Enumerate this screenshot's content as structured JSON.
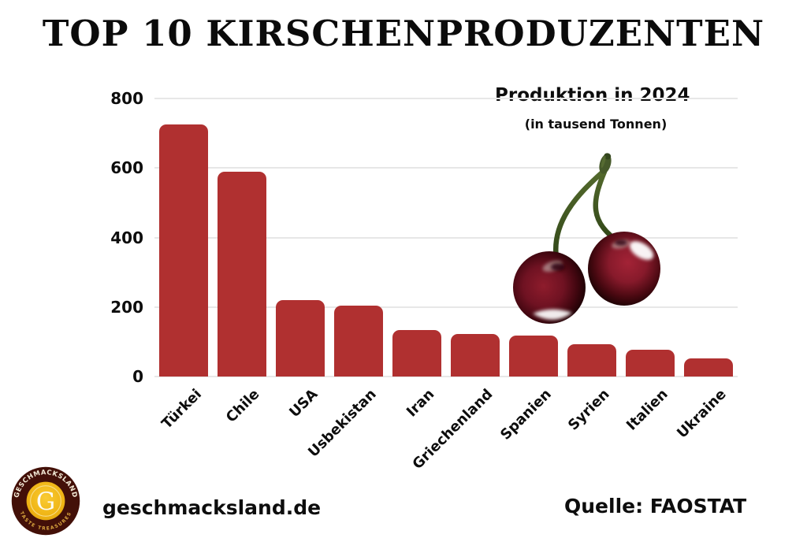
{
  "title": "TOP 10 KIRSCHENPRODUZENTEN",
  "chart_data": {
    "type": "bar",
    "title": "Produktion in 2024",
    "subtitle": "(in tausend Tonnen)",
    "categories": [
      "Türkei",
      "Chile",
      "USA",
      "Usbekistan",
      "Iran",
      "Griechenland",
      "Spanien",
      "Syrien",
      "Italien",
      "Ukraine"
    ],
    "values": [
      725,
      590,
      220,
      205,
      133,
      122,
      117,
      94,
      78,
      52
    ],
    "xlabel": "",
    "ylabel": "",
    "ylim": [
      0,
      800
    ],
    "yticks": [
      800,
      600,
      400,
      200,
      0
    ],
    "grid": true,
    "legend": "none",
    "bar_color": "#b03030",
    "gridline_color": "#e7e7e7"
  },
  "footer": {
    "website": "geschmacksland.de",
    "source": "Quelle: FAOSTAT"
  },
  "logo": {
    "brand": "GESCHMACKSLAND",
    "tagline": "TASTE TREASURES",
    "monogram": "G",
    "ring_color": "#431008",
    "gold_color": "#efb414"
  },
  "illustration": {
    "name": "cherries",
    "cherry_dark": "#1a0204",
    "cherry_mid": "#8c1a2b",
    "stem_green": "#42591f"
  }
}
